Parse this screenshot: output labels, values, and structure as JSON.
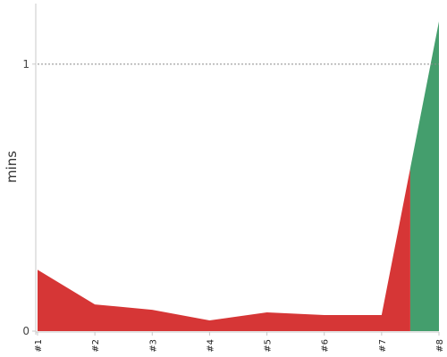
{
  "chart_data": {
    "type": "area",
    "title": "",
    "xlabel": "",
    "ylabel": "mins",
    "categories": [
      "#1",
      "#2",
      "#3",
      "#4",
      "#5",
      "#6",
      "#7",
      "#8"
    ],
    "values": [
      0.23,
      0.1,
      0.08,
      0.04,
      0.07,
      0.06,
      0.06,
      1.16
    ],
    "ylim": [
      0,
      1.22
    ],
    "yticks": [
      0,
      1
    ],
    "reference_line": 1,
    "segments": [
      {
        "from": "#1",
        "to": "#7.5",
        "color": "#d63636"
      },
      {
        "from": "#7.5",
        "to": "#8",
        "color": "#449e6d"
      }
    ],
    "split_at": 7.5,
    "grid": false,
    "legend": "none"
  }
}
